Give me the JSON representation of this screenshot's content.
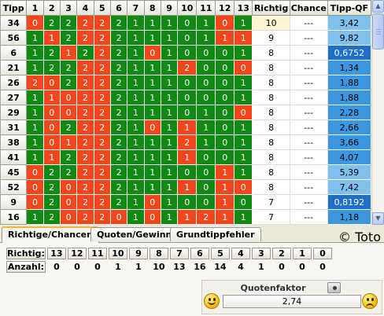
{
  "grid": {
    "headers": [
      "Tipp",
      "1",
      "2",
      "3",
      "4",
      "5",
      "6",
      "7",
      "8",
      "9",
      "10",
      "11",
      "12",
      "13",
      "Richtig",
      "Chance",
      "Tipp-QF"
    ],
    "rows": [
      {
        "tipp": "34",
        "cells": [
          "0",
          "2",
          "2",
          "2",
          "2",
          "2",
          "1",
          "1",
          "1",
          "0",
          "1",
          "0",
          "1"
        ],
        "colors": [
          "r",
          "g",
          "g",
          "r",
          "r",
          "g",
          "g",
          "g",
          "g",
          "g",
          "g",
          "r",
          "g"
        ],
        "richtig": "10",
        "chance": "---",
        "qf": "3,42",
        "qf_level": 1
      },
      {
        "tipp": "56",
        "cells": [
          "1",
          "1",
          "2",
          "2",
          "2",
          "2",
          "1",
          "1",
          "1",
          "0",
          "1",
          "1",
          "1"
        ],
        "colors": [
          "g",
          "r",
          "g",
          "r",
          "r",
          "g",
          "g",
          "g",
          "g",
          "g",
          "g",
          "r",
          "r"
        ],
        "richtig": "9",
        "chance": "---",
        "qf": "9,82",
        "qf_level": 1
      },
      {
        "tipp": "6",
        "cells": [
          "1",
          "2",
          "1",
          "2",
          "2",
          "2",
          "1",
          "0",
          "1",
          "0",
          "0",
          "0",
          "1"
        ],
        "colors": [
          "g",
          "g",
          "r",
          "g",
          "r",
          "g",
          "g",
          "r",
          "g",
          "g",
          "g",
          "g",
          "g"
        ],
        "richtig": "8",
        "chance": "---",
        "qf": "0,6752",
        "qf_level": 3
      },
      {
        "tipp": "21",
        "cells": [
          "1",
          "2",
          "2",
          "2",
          "2",
          "2",
          "1",
          "1",
          "1",
          "2",
          "0",
          "0",
          "0"
        ],
        "colors": [
          "g",
          "g",
          "g",
          "r",
          "r",
          "g",
          "g",
          "g",
          "g",
          "r",
          "g",
          "g",
          "r"
        ],
        "richtig": "8",
        "chance": "---",
        "qf": "1,34",
        "qf_level": 2
      },
      {
        "tipp": "26",
        "cells": [
          "2",
          "0",
          "2",
          "2",
          "2",
          "2",
          "1",
          "1",
          "1",
          "0",
          "0",
          "0",
          "1"
        ],
        "colors": [
          "r",
          "r",
          "g",
          "r",
          "r",
          "g",
          "g",
          "g",
          "g",
          "g",
          "g",
          "g",
          "g"
        ],
        "richtig": "8",
        "chance": "---",
        "qf": "1,88",
        "qf_level": 2
      },
      {
        "tipp": "27",
        "cells": [
          "1",
          "1",
          "0",
          "2",
          "2",
          "2",
          "1",
          "1",
          "1",
          "0",
          "0",
          "0",
          "1"
        ],
        "colors": [
          "g",
          "r",
          "r",
          "r",
          "r",
          "g",
          "g",
          "g",
          "g",
          "g",
          "g",
          "g",
          "g"
        ],
        "richtig": "8",
        "chance": "---",
        "qf": "1,88",
        "qf_level": 2
      },
      {
        "tipp": "29",
        "cells": [
          "1",
          "0",
          "0",
          "2",
          "2",
          "2",
          "1",
          "1",
          "1",
          "0",
          "1",
          "0",
          "0"
        ],
        "colors": [
          "g",
          "r",
          "r",
          "r",
          "r",
          "g",
          "g",
          "g",
          "g",
          "g",
          "g",
          "g",
          "r"
        ],
        "richtig": "8",
        "chance": "---",
        "qf": "2,28",
        "qf_level": 2
      },
      {
        "tipp": "31",
        "cells": [
          "1",
          "0",
          "2",
          "2",
          "2",
          "2",
          "1",
          "0",
          "1",
          "1",
          "1",
          "0",
          "1"
        ],
        "colors": [
          "g",
          "r",
          "g",
          "r",
          "r",
          "g",
          "g",
          "r",
          "g",
          "r",
          "g",
          "g",
          "g"
        ],
        "richtig": "8",
        "chance": "---",
        "qf": "2,66",
        "qf_level": 2
      },
      {
        "tipp": "38",
        "cells": [
          "1",
          "0",
          "1",
          "2",
          "2",
          "2",
          "1",
          "1",
          "1",
          "2",
          "1",
          "0",
          "1"
        ],
        "colors": [
          "g",
          "r",
          "r",
          "r",
          "r",
          "g",
          "g",
          "g",
          "g",
          "r",
          "g",
          "g",
          "g"
        ],
        "richtig": "8",
        "chance": "---",
        "qf": "3,66",
        "qf_level": 2
      },
      {
        "tipp": "41",
        "cells": [
          "1",
          "1",
          "2",
          "2",
          "2",
          "2",
          "1",
          "1",
          "1",
          "1",
          "0",
          "0",
          "1"
        ],
        "colors": [
          "g",
          "r",
          "g",
          "r",
          "r",
          "g",
          "g",
          "g",
          "g",
          "r",
          "g",
          "g",
          "g"
        ],
        "richtig": "8",
        "chance": "---",
        "qf": "4,07",
        "qf_level": 2
      },
      {
        "tipp": "45",
        "cells": [
          "0",
          "2",
          "2",
          "2",
          "2",
          "2",
          "1",
          "1",
          "1",
          "0",
          "0",
          "1",
          "1"
        ],
        "colors": [
          "r",
          "g",
          "g",
          "r",
          "r",
          "g",
          "g",
          "g",
          "g",
          "g",
          "g",
          "r",
          "g"
        ],
        "richtig": "8",
        "chance": "---",
        "qf": "5,39",
        "qf_level": 1
      },
      {
        "tipp": "52",
        "cells": [
          "0",
          "2",
          "0",
          "2",
          "2",
          "2",
          "1",
          "1",
          "1",
          "1",
          "0",
          "1",
          "0"
        ],
        "colors": [
          "r",
          "g",
          "r",
          "r",
          "r",
          "g",
          "g",
          "g",
          "g",
          "r",
          "g",
          "r",
          "r"
        ],
        "richtig": "8",
        "chance": "---",
        "qf": "7,42",
        "qf_level": 1
      },
      {
        "tipp": "9",
        "cells": [
          "0",
          "2",
          "0",
          "2",
          "2",
          "2",
          "1",
          "0",
          "1",
          "0",
          "0",
          "1",
          "0"
        ],
        "colors": [
          "r",
          "g",
          "r",
          "r",
          "r",
          "g",
          "g",
          "r",
          "g",
          "g",
          "g",
          "r",
          "g"
        ],
        "richtig": "7",
        "chance": "---",
        "qf": "0,8192",
        "qf_level": 3
      },
      {
        "tipp": "16",
        "cells": [
          "1",
          "2",
          "0",
          "2",
          "2",
          "0",
          "1",
          "0",
          "1",
          "1",
          "2",
          "1",
          "1"
        ],
        "colors": [
          "g",
          "g",
          "r",
          "r",
          "r",
          "r",
          "g",
          "r",
          "g",
          "r",
          "r",
          "r",
          "g"
        ],
        "richtig": "7",
        "chance": "---",
        "qf": "1,18",
        "qf_level": 2
      }
    ]
  },
  "tabs": [
    "Richtige/Chancen",
    "Quoten/Gewinn",
    "Grundtippfehler"
  ],
  "copyright": "© Toto",
  "stats": {
    "richtig_label": "Richtig:",
    "anzahl_label": "Anzahl:",
    "richtig_values": [
      "13",
      "12",
      "11",
      "10",
      "9",
      "8",
      "7",
      "6",
      "5",
      "4",
      "3",
      "2",
      "1",
      "0"
    ],
    "anzahl_values": [
      "0",
      "0",
      "0",
      "1",
      "1",
      "10",
      "13",
      "16",
      "14",
      "4",
      "1",
      "0",
      "0",
      "0"
    ]
  },
  "quotenfaktor": {
    "label": "Quotenfaktor",
    "value": "2,74"
  },
  "icons": {
    "camera": "camera-icon",
    "happy": "happy-smiley-icon",
    "sad": "sad-smiley-icon"
  },
  "colors": {
    "cell_green": "#108a12",
    "cell_red": "#f2461c",
    "qf_light": "#7fc0ee",
    "qf_mid": "#3b98e0",
    "qf_dark": "#1f6fc8",
    "tab_accent": "#f0b53c"
  }
}
